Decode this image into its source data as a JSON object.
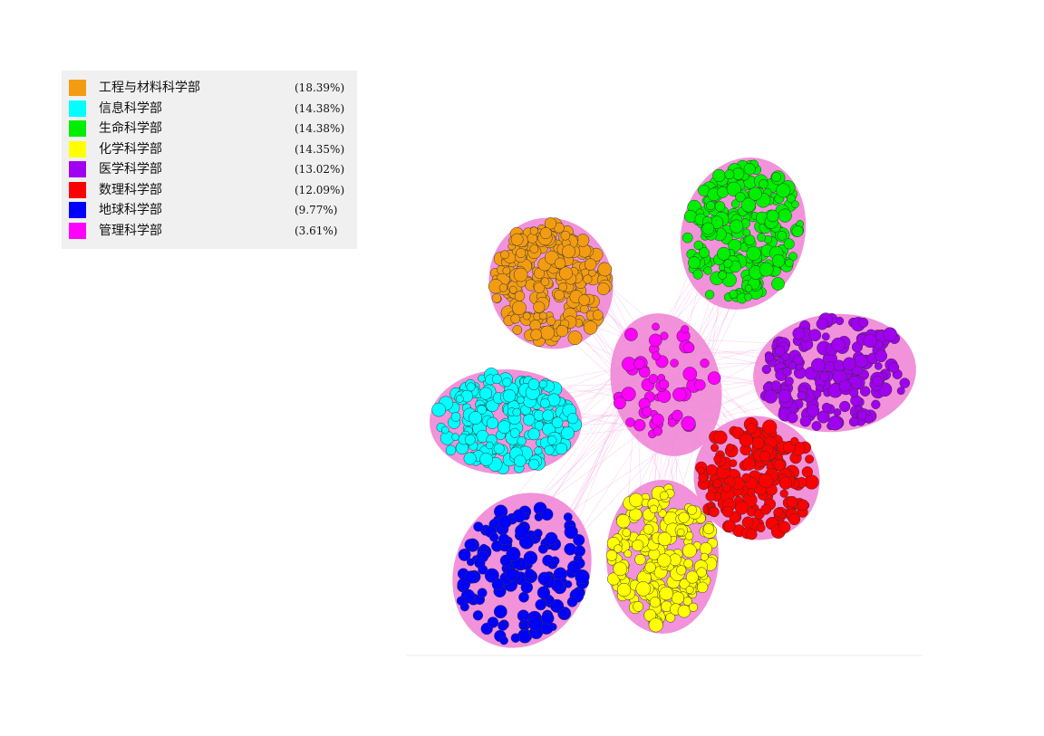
{
  "legend": {
    "items": [
      {
        "label": "工程与材料科学部",
        "pct": "(18.39%)",
        "color": "#f39c12",
        "share": 18.39
      },
      {
        "label": "信息科学部",
        "pct": "(14.38%)",
        "color": "#00ffff",
        "share": 14.38
      },
      {
        "label": "生命科学部",
        "pct": "(14.38%)",
        "color": "#00ee00",
        "share": 14.38
      },
      {
        "label": "化学科学部",
        "pct": "(14.35%)",
        "color": "#ffff00",
        "share": 14.35
      },
      {
        "label": "医学科学部",
        "pct": "(13.02%)",
        "color": "#a000f0",
        "share": 13.02
      },
      {
        "label": "数理科学部",
        "pct": "(12.09%)",
        "color": "#ff0000",
        "share": 12.09
      },
      {
        "label": "地球科学部",
        "pct": "(9.77%)",
        "color": "#0000ff",
        "share": 9.77
      },
      {
        "label": "管理科学部",
        "pct": "(3.61%)",
        "color": "#ff00ff",
        "share": 3.61
      }
    ]
  },
  "network": {
    "edge_color": "#f08cd8",
    "node_outline": "#333333"
  }
}
